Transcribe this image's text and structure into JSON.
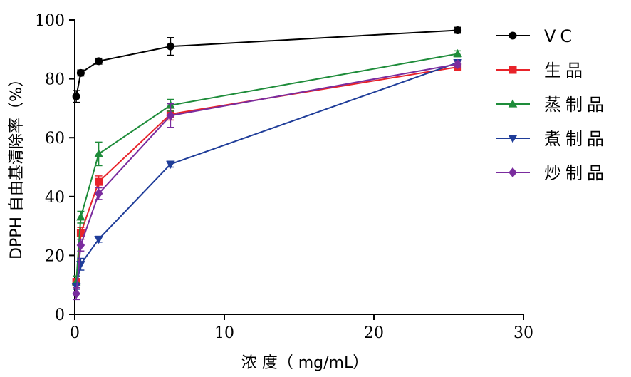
{
  "chart_data": {
    "type": "line",
    "xlabel": "浓 度（ mg/mL）",
    "ylabel": "DPPH 自由基清除率（%）",
    "xlim": [
      0,
      30
    ],
    "ylim": [
      0,
      100
    ],
    "xticks": [
      "0",
      "10",
      "20",
      "30"
    ],
    "yticks": [
      "0",
      "20",
      "40",
      "60",
      "80",
      "100"
    ],
    "grid": false,
    "legend_position": "right",
    "series": [
      {
        "name": "VC",
        "color": "#000000",
        "marker": "circle",
        "x": [
          0.1,
          0.4,
          1.6,
          6.4,
          25.6
        ],
        "y": [
          74,
          82,
          86,
          91,
          96.5
        ],
        "err": [
          2,
          1,
          1,
          3,
          1
        ]
      },
      {
        "name": "生品",
        "color": "#e8232a",
        "marker": "square",
        "x": [
          0.1,
          0.4,
          1.6,
          6.4,
          25.6
        ],
        "y": [
          11,
          27.5,
          45,
          68,
          84
        ],
        "err": [
          2,
          2,
          2,
          2,
          1
        ]
      },
      {
        "name": "蒸制品",
        "color": "#1e8c3a",
        "marker": "triangle-up",
        "x": [
          0.1,
          0.4,
          1.6,
          6.4,
          25.6
        ],
        "y": [
          11,
          33,
          54.5,
          71,
          88.5
        ],
        "err": [
          2,
          2,
          4,
          2,
          1
        ]
      },
      {
        "name": "煮制品",
        "color": "#1f3d99",
        "marker": "triangle-down",
        "x": [
          0.1,
          0.4,
          1.6,
          6.4,
          25.6
        ],
        "y": [
          9.5,
          17,
          25.5,
          51,
          85.5
        ],
        "err": [
          1,
          2,
          1,
          1,
          1
        ]
      },
      {
        "name": "炒制品",
        "color": "#7a2c9e",
        "marker": "diamond",
        "x": [
          0.1,
          0.4,
          1.6,
          6.4,
          25.6
        ],
        "y": [
          7,
          23.5,
          41,
          67.5,
          85
        ],
        "err": [
          2,
          2,
          2,
          4,
          1
        ]
      }
    ]
  }
}
